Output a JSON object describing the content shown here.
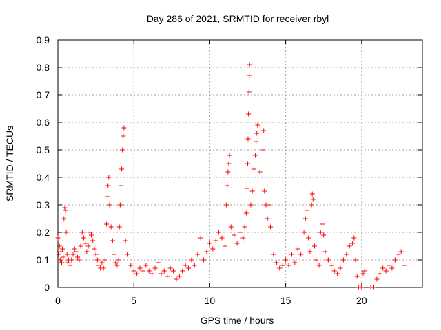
{
  "chart_data": {
    "type": "scatter",
    "title": "Day 286 of 2021, SRMTID for receiver rbyl",
    "xlabel": "GPS time / hours",
    "ylabel": "SRMTID / TECUs",
    "xlim": [
      0,
      24
    ],
    "ylim": [
      0,
      0.9
    ],
    "x_ticks": [
      "0",
      "5",
      "10",
      "15",
      "20"
    ],
    "y_ticks": [
      "0",
      "0.1",
      "0.2",
      "0.3",
      "0.4",
      "0.5",
      "0.6",
      "0.7",
      "0.8",
      "0.9"
    ],
    "x_tick_values": [
      0,
      5,
      10,
      15,
      20
    ],
    "y_tick_values": [
      0,
      0.1,
      0.2,
      0.3,
      0.4,
      0.5,
      0.6,
      0.7,
      0.8,
      0.9
    ],
    "grid": true,
    "marker": "+",
    "series": [
      {
        "name": "SRMTID",
        "color": "#ff0000",
        "points": [
          [
            0.0,
            0.18
          ],
          [
            0.05,
            0.12
          ],
          [
            0.1,
            0.15
          ],
          [
            0.15,
            0.1
          ],
          [
            0.2,
            0.13
          ],
          [
            0.25,
            0.09
          ],
          [
            0.3,
            0.14
          ],
          [
            0.35,
            0.11
          ],
          [
            0.4,
            0.25
          ],
          [
            0.45,
            0.29
          ],
          [
            0.5,
            0.28
          ],
          [
            0.55,
            0.2
          ],
          [
            0.6,
            0.12
          ],
          [
            0.65,
            0.09
          ],
          [
            0.7,
            0.1
          ],
          [
            0.8,
            0.08
          ],
          [
            0.9,
            0.1
          ],
          [
            1.0,
            0.12
          ],
          [
            1.1,
            0.14
          ],
          [
            1.2,
            0.13
          ],
          [
            1.3,
            0.11
          ],
          [
            1.4,
            0.1
          ],
          [
            1.5,
            0.15
          ],
          [
            1.6,
            0.2
          ],
          [
            1.7,
            0.18
          ],
          [
            1.8,
            0.16
          ],
          [
            1.9,
            0.13
          ],
          [
            2.0,
            0.15
          ],
          [
            2.1,
            0.2
          ],
          [
            2.2,
            0.19
          ],
          [
            2.3,
            0.17
          ],
          [
            2.4,
            0.14
          ],
          [
            2.5,
            0.12
          ],
          [
            2.6,
            0.1
          ],
          [
            2.7,
            0.08
          ],
          [
            2.8,
            0.07
          ],
          [
            2.9,
            0.09
          ],
          [
            3.0,
            0.07
          ],
          [
            3.1,
            0.1
          ],
          [
            3.2,
            0.23
          ],
          [
            3.25,
            0.33
          ],
          [
            3.3,
            0.37
          ],
          [
            3.35,
            0.4
          ],
          [
            3.4,
            0.3
          ],
          [
            3.5,
            0.22
          ],
          [
            3.6,
            0.17
          ],
          [
            3.7,
            0.12
          ],
          [
            3.8,
            0.09
          ],
          [
            3.9,
            0.08
          ],
          [
            4.0,
            0.1
          ],
          [
            4.05,
            0.22
          ],
          [
            4.1,
            0.3
          ],
          [
            4.15,
            0.37
          ],
          [
            4.2,
            0.43
          ],
          [
            4.25,
            0.5
          ],
          [
            4.3,
            0.55
          ],
          [
            4.35,
            0.58
          ],
          [
            4.45,
            0.17
          ],
          [
            4.6,
            0.12
          ],
          [
            4.8,
            0.08
          ],
          [
            5.0,
            0.06
          ],
          [
            5.2,
            0.05
          ],
          [
            5.4,
            0.07
          ],
          [
            5.6,
            0.06
          ],
          [
            5.8,
            0.08
          ],
          [
            6.0,
            0.06
          ],
          [
            6.2,
            0.05
          ],
          [
            6.4,
            0.07
          ],
          [
            6.6,
            0.09
          ],
          [
            6.8,
            0.05
          ],
          [
            7.0,
            0.06
          ],
          [
            7.2,
            0.04
          ],
          [
            7.4,
            0.07
          ],
          [
            7.6,
            0.06
          ],
          [
            7.8,
            0.03
          ],
          [
            8.0,
            0.04
          ],
          [
            8.2,
            0.06
          ],
          [
            8.4,
            0.08
          ],
          [
            8.6,
            0.07
          ],
          [
            8.8,
            0.1
          ],
          [
            9.0,
            0.08
          ],
          [
            9.2,
            0.12
          ],
          [
            9.4,
            0.18
          ],
          [
            9.6,
            0.1
          ],
          [
            9.8,
            0.13
          ],
          [
            10.0,
            0.16
          ],
          [
            10.2,
            0.14
          ],
          [
            10.4,
            0.17
          ],
          [
            10.6,
            0.2
          ],
          [
            10.8,
            0.18
          ],
          [
            11.0,
            0.15
          ],
          [
            11.1,
            0.3
          ],
          [
            11.15,
            0.37
          ],
          [
            11.2,
            0.42
          ],
          [
            11.25,
            0.45
          ],
          [
            11.3,
            0.48
          ],
          [
            11.4,
            0.22
          ],
          [
            11.6,
            0.19
          ],
          [
            11.8,
            0.16
          ],
          [
            12.0,
            0.2
          ],
          [
            12.2,
            0.18
          ],
          [
            12.3,
            0.22
          ],
          [
            12.4,
            0.27
          ],
          [
            12.45,
            0.36
          ],
          [
            12.5,
            0.45
          ],
          [
            12.52,
            0.54
          ],
          [
            12.55,
            0.63
          ],
          [
            12.58,
            0.71
          ],
          [
            12.6,
            0.77
          ],
          [
            12.62,
            0.81
          ],
          [
            12.7,
            0.3
          ],
          [
            12.8,
            0.35
          ],
          [
            12.9,
            0.43
          ],
          [
            13.0,
            0.48
          ],
          [
            13.05,
            0.53
          ],
          [
            13.1,
            0.56
          ],
          [
            13.15,
            0.59
          ],
          [
            13.3,
            0.42
          ],
          [
            13.5,
            0.5
          ],
          [
            13.55,
            0.57
          ],
          [
            13.6,
            0.35
          ],
          [
            13.7,
            0.3
          ],
          [
            13.8,
            0.25
          ],
          [
            13.9,
            0.3
          ],
          [
            14.0,
            0.22
          ],
          [
            14.2,
            0.12
          ],
          [
            14.4,
            0.09
          ],
          [
            14.6,
            0.07
          ],
          [
            14.8,
            0.08
          ],
          [
            15.0,
            0.1
          ],
          [
            15.2,
            0.08
          ],
          [
            15.4,
            0.12
          ],
          [
            15.6,
            0.09
          ],
          [
            15.8,
            0.14
          ],
          [
            16.0,
            0.12
          ],
          [
            16.2,
            0.2
          ],
          [
            16.3,
            0.25
          ],
          [
            16.4,
            0.28
          ],
          [
            16.5,
            0.18
          ],
          [
            16.6,
            0.13
          ],
          [
            16.7,
            0.3
          ],
          [
            16.75,
            0.34
          ],
          [
            16.8,
            0.32
          ],
          [
            16.9,
            0.15
          ],
          [
            17.0,
            0.1
          ],
          [
            17.2,
            0.08
          ],
          [
            17.3,
            0.2
          ],
          [
            17.4,
            0.23
          ],
          [
            17.5,
            0.19
          ],
          [
            17.6,
            0.13
          ],
          [
            17.8,
            0.1
          ],
          [
            18.0,
            0.08
          ],
          [
            18.2,
            0.06
          ],
          [
            18.4,
            0.05
          ],
          [
            18.6,
            0.07
          ],
          [
            18.8,
            0.1
          ],
          [
            19.0,
            0.12
          ],
          [
            19.2,
            0.15
          ],
          [
            19.4,
            0.16
          ],
          [
            19.5,
            0.18
          ],
          [
            19.6,
            0.1
          ],
          [
            19.7,
            0.04
          ],
          [
            19.8,
            0.0
          ],
          [
            19.9,
            0.0
          ],
          [
            20.0,
            0.0
          ],
          [
            20.1,
            0.05
          ],
          [
            20.2,
            0.06
          ],
          [
            20.6,
            0.0
          ],
          [
            20.8,
            0.0
          ],
          [
            21.0,
            0.03
          ],
          [
            21.2,
            0.05
          ],
          [
            21.4,
            0.07
          ],
          [
            21.6,
            0.06
          ],
          [
            21.8,
            0.08
          ],
          [
            22.0,
            0.07
          ],
          [
            22.2,
            0.1
          ],
          [
            22.4,
            0.12
          ],
          [
            22.6,
            0.13
          ],
          [
            22.8,
            0.08
          ]
        ]
      }
    ]
  }
}
